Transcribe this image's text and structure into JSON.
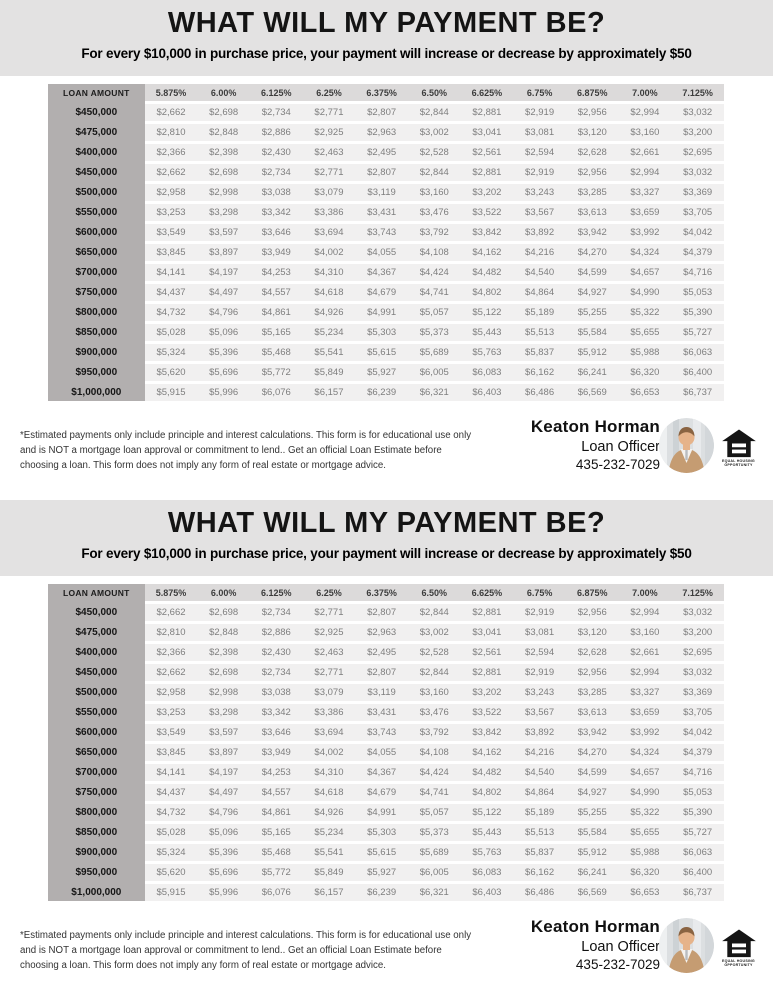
{
  "flyer": {
    "title": "WHAT WILL MY PAYMENT BE?",
    "subtitle": "For every $10,000 in purchase price, your payment will increase or decrease by approximately $50",
    "disclaimer": "*Estimated payments only include principle and interest calculations. This form is for educational use only and is NOT a mortgage loan approval or commitment to lend.. Get an official Loan Estimate before choosing a loan.  This form does not imply any form of real estate or mortgage advice.",
    "contact": {
      "name": "Keaton Horman",
      "role": "Loan Officer",
      "phone": "435-232-7029"
    },
    "logo": {
      "line1": "EQUAL HOUSING",
      "line2": "OPPORTUNITY"
    }
  },
  "table": {
    "columns": [
      "LOAN AMOUNT",
      "5.875%",
      "6.00%",
      "6.125%",
      "6.25%",
      "6.375%",
      "6.50%",
      "6.625%",
      "6.75%",
      "6.875%",
      "7.00%",
      "7.125%"
    ],
    "rows": [
      {
        "loan_amount": "$450,000",
        "payments": [
          "$2,662",
          "$2,698",
          "$2,734",
          "$2,771",
          "$2,807",
          "$2,844",
          "$2,881",
          "$2,919",
          "$2,956",
          "$2,994",
          "$3,032"
        ]
      },
      {
        "loan_amount": "$475,000",
        "payments": [
          "$2,810",
          "$2,848",
          "$2,886",
          "$2,925",
          "$2,963",
          "$3,002",
          "$3,041",
          "$3,081",
          "$3,120",
          "$3,160",
          "$3,200"
        ]
      },
      {
        "loan_amount": "$400,000",
        "payments": [
          "$2,366",
          "$2,398",
          "$2,430",
          "$2,463",
          "$2,495",
          "$2,528",
          "$2,561",
          "$2,594",
          "$2,628",
          "$2,661",
          "$2,695"
        ]
      },
      {
        "loan_amount": "$450,000",
        "payments": [
          "$2,662",
          "$2,698",
          "$2,734",
          "$2,771",
          "$2,807",
          "$2,844",
          "$2,881",
          "$2,919",
          "$2,956",
          "$2,994",
          "$3,032"
        ]
      },
      {
        "loan_amount": "$500,000",
        "payments": [
          "$2,958",
          "$2,998",
          "$3,038",
          "$3,079",
          "$3,119",
          "$3,160",
          "$3,202",
          "$3,243",
          "$3,285",
          "$3,327",
          "$3,369"
        ]
      },
      {
        "loan_amount": "$550,000",
        "payments": [
          "$3,253",
          "$3,298",
          "$3,342",
          "$3,386",
          "$3,431",
          "$3,476",
          "$3,522",
          "$3,567",
          "$3,613",
          "$3,659",
          "$3,705"
        ]
      },
      {
        "loan_amount": "$600,000",
        "payments": [
          "$3,549",
          "$3,597",
          "$3,646",
          "$3,694",
          "$3,743",
          "$3,792",
          "$3,842",
          "$3,892",
          "$3,942",
          "$3,992",
          "$4,042"
        ]
      },
      {
        "loan_amount": "$650,000",
        "payments": [
          "$3,845",
          "$3,897",
          "$3,949",
          "$4,002",
          "$4,055",
          "$4,108",
          "$4,162",
          "$4,216",
          "$4,270",
          "$4,324",
          "$4,379"
        ]
      },
      {
        "loan_amount": "$700,000",
        "payments": [
          "$4,141",
          "$4,197",
          "$4,253",
          "$4,310",
          "$4,367",
          "$4,424",
          "$4,482",
          "$4,540",
          "$4,599",
          "$4,657",
          "$4,716"
        ]
      },
      {
        "loan_amount": "$750,000",
        "payments": [
          "$4,437",
          "$4,497",
          "$4,557",
          "$4,618",
          "$4,679",
          "$4,741",
          "$4,802",
          "$4,864",
          "$4,927",
          "$4,990",
          "$5,053"
        ]
      },
      {
        "loan_amount": "$800,000",
        "payments": [
          "$4,732",
          "$4,796",
          "$4,861",
          "$4,926",
          "$4,991",
          "$5,057",
          "$5,122",
          "$5,189",
          "$5,255",
          "$5,322",
          "$5,390"
        ]
      },
      {
        "loan_amount": "$850,000",
        "payments": [
          "$5,028",
          "$5,096",
          "$5,165",
          "$5,234",
          "$5,303",
          "$5,373",
          "$5,443",
          "$5,513",
          "$5,584",
          "$5,655",
          "$5,727"
        ]
      },
      {
        "loan_amount": "$900,000",
        "payments": [
          "$5,324",
          "$5,396",
          "$5,468",
          "$5,541",
          "$5,615",
          "$5,689",
          "$5,763",
          "$5,837",
          "$5,912",
          "$5,988",
          "$6,063"
        ]
      },
      {
        "loan_amount": "$950,000",
        "payments": [
          "$5,620",
          "$5,696",
          "$5,772",
          "$5,849",
          "$5,927",
          "$6,005",
          "$6,083",
          "$6,162",
          "$6,241",
          "$6,320",
          "$6,400"
        ]
      },
      {
        "loan_amount": "$1,000,000",
        "payments": [
          "$5,915",
          "$5,996",
          "$6,076",
          "$6,157",
          "$6,239",
          "$6,321",
          "$6,403",
          "$6,486",
          "$6,569",
          "$6,653",
          "$6,737"
        ]
      }
    ]
  }
}
